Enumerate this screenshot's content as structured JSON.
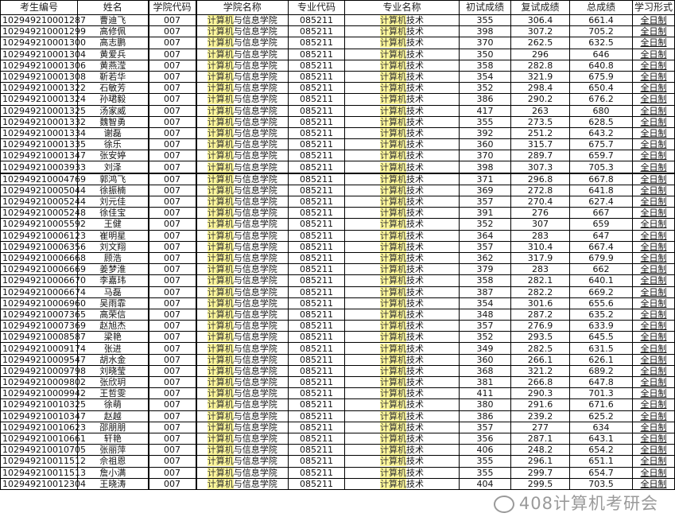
{
  "headers": [
    "考生编号",
    "姓名",
    "学院代码",
    "学院名称",
    "专业代码",
    "专业名称",
    "初试成绩",
    "复试成绩",
    "总成绩",
    "学习形式"
  ],
  "college": {
    "highlight": "计算机",
    "rest": "与信息学院"
  },
  "major": {
    "highlight": "计算机",
    "rest": "技术"
  },
  "college_code": "007",
  "major_code": "085211",
  "study_mode": "全日制",
  "highlight_color": "#fbf59a",
  "watermark": "408计算机考研会",
  "rows": [
    [
      "102949210001287",
      "曹迪飞",
      "355",
      "306.4",
      "661.4"
    ],
    [
      "102949210001299",
      "高修佩",
      "398",
      "307.2",
      "705.2"
    ],
    [
      "102949210001300",
      "高志鹏",
      "370",
      "262.5",
      "632.5"
    ],
    [
      "102949210001304",
      "黄爱兵",
      "350",
      "296",
      "646"
    ],
    [
      "102949210001306",
      "黄燕滢",
      "358",
      "282.8",
      "640.8"
    ],
    [
      "102949210001308",
      "靳若华",
      "354",
      "321.9",
      "675.9"
    ],
    [
      "102949210001322",
      "石敏芳",
      "352",
      "298.4",
      "650.4"
    ],
    [
      "102949210001324",
      "孙珺毅",
      "386",
      "290.2",
      "676.2"
    ],
    [
      "102949210001325",
      "汤家威",
      "417",
      "263",
      "680"
    ],
    [
      "102949210001332",
      "魏智勇",
      "355",
      "273.5",
      "628.5"
    ],
    [
      "102949210001334",
      "谢磊",
      "392",
      "251.2",
      "643.2"
    ],
    [
      "102949210001335",
      "徐乐",
      "360",
      "315.7",
      "675.7"
    ],
    [
      "102949210001347",
      "张安婷",
      "370",
      "289.7",
      "659.7"
    ],
    [
      "102949210003933",
      "刘泽",
      "398",
      "307.3",
      "705.3"
    ],
    [
      "102949210004769",
      "郭鸿飞",
      "371",
      "296.8",
      "667.8"
    ],
    [
      "102949210005044",
      "徐振楠",
      "369",
      "272.8",
      "641.8"
    ],
    [
      "102949210005244",
      "刘元佳",
      "357",
      "270.4",
      "627.4"
    ],
    [
      "102949210005248",
      "徐佳宝",
      "391",
      "276",
      "667"
    ],
    [
      "102949210005592",
      "王健",
      "352",
      "307",
      "659"
    ],
    [
      "102949210006123",
      "崔明星",
      "364",
      "283",
      "647"
    ],
    [
      "102949210006356",
      "刘文翔",
      "357",
      "310.4",
      "667.4"
    ],
    [
      "102949210006668",
      "顾浩",
      "362",
      "317.9",
      "679.9"
    ],
    [
      "102949210006669",
      "姜梦淮",
      "379",
      "283",
      "662"
    ],
    [
      "102949210006670",
      "李嘉玮",
      "358",
      "282.1",
      "640.1"
    ],
    [
      "102949210006674",
      "马磊",
      "387",
      "282.2",
      "669.2"
    ],
    [
      "102949210006960",
      "吴雨霏",
      "354",
      "301.6",
      "655.6"
    ],
    [
      "102949210007365",
      "高荣信",
      "348",
      "287.2",
      "635.2"
    ],
    [
      "102949210007369",
      "赵旭杰",
      "357",
      "276.9",
      "633.9"
    ],
    [
      "102949210008587",
      "梁艳",
      "352",
      "293.5",
      "645.5"
    ],
    [
      "102949210009174",
      "张进",
      "349",
      "282.5",
      "631.5"
    ],
    [
      "102949210009547",
      "胡水金",
      "360",
      "266.1",
      "626.1"
    ],
    [
      "102949210009798",
      "刘晓莹",
      "368",
      "321.2",
      "689.2"
    ],
    [
      "102949210009802",
      "张欣玥",
      "381",
      "266.8",
      "647.8"
    ],
    [
      "102949210009942",
      "王哲雯",
      "411",
      "290.3",
      "701.3"
    ],
    [
      "102949210010325",
      "徐萌",
      "380",
      "291.6",
      "671.6"
    ],
    [
      "102949210010347",
      "赵越",
      "386",
      "239.2",
      "625.2"
    ],
    [
      "102949210010623",
      "邵朋朋",
      "357",
      "277",
      "634"
    ],
    [
      "102949210010661",
      "轩艳",
      "356",
      "287.1",
      "643.1"
    ],
    [
      "102949210010705",
      "张丽萍",
      "406",
      "248.2",
      "654.2"
    ],
    [
      "102949210011512",
      "佘祖恩",
      "355",
      "296.1",
      "651.1"
    ],
    [
      "102949210011513",
      "詹小满",
      "355",
      "299.7",
      "654.7"
    ],
    [
      "102949210012304",
      "王晓涛",
      "404",
      "299.5",
      "703.5"
    ]
  ]
}
